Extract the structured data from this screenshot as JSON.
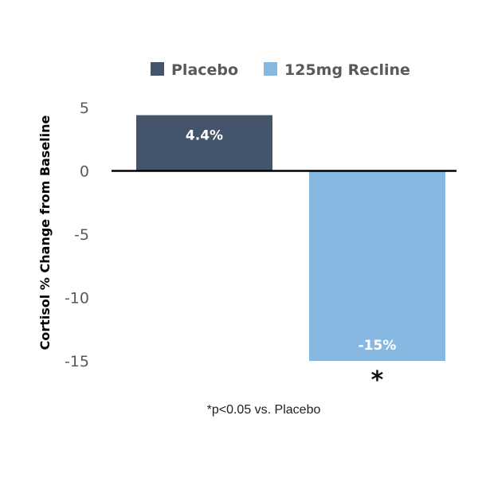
{
  "chart_data": {
    "type": "bar",
    "categories": [
      "Placebo",
      "125mg Recline"
    ],
    "series": [
      {
        "name": "Placebo",
        "values": [
          4.4,
          null
        ],
        "color": "#44546a",
        "data_label": "4.4%"
      },
      {
        "name": "125mg Recline",
        "values": [
          null,
          -15
        ],
        "color": "#86b8e2",
        "data_label": "-15%"
      }
    ],
    "ylabel": "Cortisol % Change from Baseline",
    "ylim": [
      -15,
      5
    ],
    "yticks": [
      "5",
      "0",
      "-5",
      "-10",
      "-15"
    ],
    "ytick_values": [
      5,
      0,
      -5,
      -10,
      -15
    ],
    "legend_position": "top",
    "grid": false,
    "annotation": "*",
    "footnote": "*p<0.05 vs. Placebo"
  }
}
